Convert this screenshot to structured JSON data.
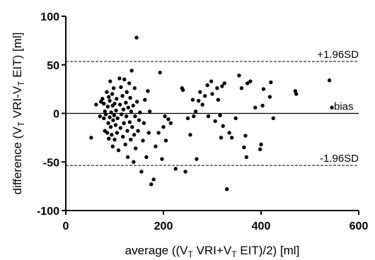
{
  "chart_data": {
    "type": "scatter",
    "title": "",
    "xlabel_parts": [
      "average ((V",
      "T",
      " VRI+V",
      "T",
      " EIT)/2) [ml]"
    ],
    "ylabel_parts": [
      "difference (V",
      "T",
      " VRI-V",
      "T",
      " EIT) [ml]"
    ],
    "xlim": [
      0,
      600
    ],
    "ylim": [
      -100,
      100
    ],
    "x_ticks": [
      0,
      200,
      400,
      600
    ],
    "y_ticks": [
      -100,
      -50,
      0,
      50,
      100
    ],
    "x_tick_labels": [
      "0",
      "200",
      "400",
      "600"
    ],
    "y_tick_labels": [
      "-100",
      "-50",
      "0",
      "50",
      "100"
    ],
    "grid": false,
    "reference_lines": [
      {
        "y": 53.5,
        "label": "+1.96SD",
        "style": "dashed"
      },
      {
        "y": 0,
        "label": "bias",
        "style": "solid"
      },
      {
        "y": -53.5,
        "label": "-1.96SD",
        "style": "dashed"
      }
    ],
    "points": [
      [
        52,
        -25
      ],
      [
        62,
        9
      ],
      [
        70,
        -3
      ],
      [
        72,
        12
      ],
      [
        75,
        15
      ],
      [
        78,
        10
      ],
      [
        78,
        -5
      ],
      [
        80,
        2
      ],
      [
        80,
        -18
      ],
      [
        82,
        -1
      ],
      [
        84,
        22
      ],
      [
        85,
        -20
      ],
      [
        86,
        7
      ],
      [
        87,
        -10
      ],
      [
        88,
        17
      ],
      [
        88,
        -26
      ],
      [
        90,
        13
      ],
      [
        90,
        -4
      ],
      [
        91,
        33
      ],
      [
        92,
        -14
      ],
      [
        93,
        1
      ],
      [
        94,
        -22
      ],
      [
        95,
        20
      ],
      [
        96,
        8
      ],
      [
        96,
        -34
      ],
      [
        97,
        -7
      ],
      [
        98,
        26
      ],
      [
        99,
        -2
      ],
      [
        100,
        10
      ],
      [
        100,
        -27
      ],
      [
        102,
        -12
      ],
      [
        103,
        3
      ],
      [
        104,
        15
      ],
      [
        105,
        -20
      ],
      [
        106,
        -5
      ],
      [
        108,
        -38
      ],
      [
        110,
        36
      ],
      [
        111,
        9
      ],
      [
        112,
        -15
      ],
      [
        113,
        27
      ],
      [
        114,
        -1
      ],
      [
        116,
        18
      ],
      [
        117,
        -24
      ],
      [
        118,
        4
      ],
      [
        119,
        -10
      ],
      [
        120,
        35
      ],
      [
        122,
        -32
      ],
      [
        123,
        11
      ],
      [
        124,
        -3
      ],
      [
        125,
        22
      ],
      [
        126,
        -18
      ],
      [
        127,
        -45
      ],
      [
        128,
        6
      ],
      [
        130,
        31
      ],
      [
        131,
        -9
      ],
      [
        132,
        16
      ],
      [
        133,
        -27
      ],
      [
        134,
        2
      ],
      [
        135,
        44
      ],
      [
        136,
        -14
      ],
      [
        138,
        8
      ],
      [
        139,
        -50
      ],
      [
        140,
        -22
      ],
      [
        141,
        26
      ],
      [
        142,
        -3
      ],
      [
        143,
        -36
      ],
      [
        145,
        78
      ],
      [
        146,
        12
      ],
      [
        148,
        -18
      ],
      [
        150,
        -7
      ],
      [
        152,
        1
      ],
      [
        155,
        -60
      ],
      [
        158,
        -28
      ],
      [
        160,
        -10
      ],
      [
        162,
        14
      ],
      [
        165,
        -45
      ],
      [
        168,
        23
      ],
      [
        170,
        -20
      ],
      [
        172,
        2
      ],
      [
        175,
        -73
      ],
      [
        180,
        -68
      ],
      [
        184,
        -34
      ],
      [
        190,
        -20
      ],
      [
        193,
        42
      ],
      [
        197,
        -47
      ],
      [
        200,
        -14
      ],
      [
        203,
        -3
      ],
      [
        205,
        -28
      ],
      [
        210,
        -6
      ],
      [
        215,
        -10
      ],
      [
        225,
        -57
      ],
      [
        238,
        26
      ],
      [
        240,
        24
      ],
      [
        245,
        -60
      ],
      [
        250,
        -5
      ],
      [
        255,
        -22
      ],
      [
        260,
        14
      ],
      [
        262,
        -3
      ],
      [
        266,
        2
      ],
      [
        268,
        -47
      ],
      [
        272,
        13
      ],
      [
        275,
        22
      ],
      [
        280,
        9
      ],
      [
        285,
        18
      ],
      [
        290,
        29
      ],
      [
        292,
        -3
      ],
      [
        298,
        33
      ],
      [
        300,
        20
      ],
      [
        306,
        -8
      ],
      [
        310,
        26
      ],
      [
        312,
        14
      ],
      [
        316,
        -2
      ],
      [
        318,
        -25
      ],
      [
        320,
        28
      ],
      [
        322,
        -13
      ],
      [
        325,
        31
      ],
      [
        330,
        -78
      ],
      [
        335,
        -20
      ],
      [
        340,
        -25
      ],
      [
        348,
        -5
      ],
      [
        355,
        39
      ],
      [
        360,
        26
      ],
      [
        365,
        -35
      ],
      [
        368,
        -23
      ],
      [
        370,
        -45
      ],
      [
        372,
        31
      ],
      [
        378,
        33
      ],
      [
        388,
        6
      ],
      [
        398,
        -37
      ],
      [
        400,
        -32
      ],
      [
        403,
        8
      ],
      [
        405,
        25
      ],
      [
        418,
        17
      ],
      [
        420,
        32
      ],
      [
        425,
        -5
      ],
      [
        470,
        23
      ],
      [
        472,
        20
      ],
      [
        540,
        34
      ],
      [
        545,
        6
      ]
    ]
  }
}
